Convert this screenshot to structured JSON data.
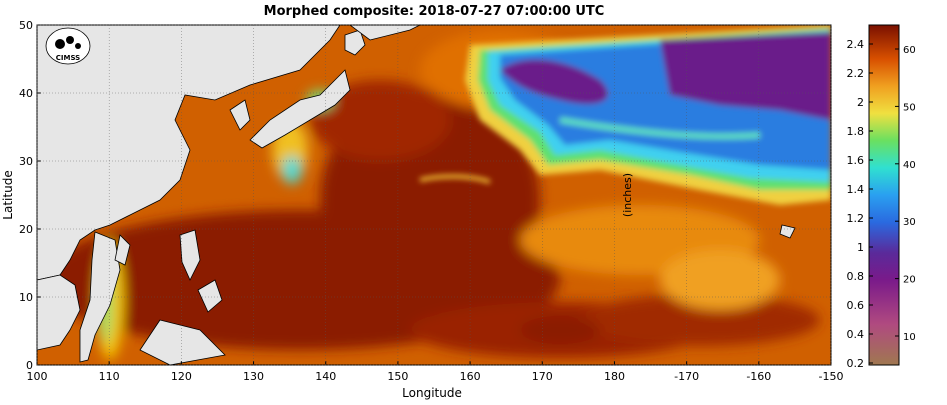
{
  "title": "Morphed composite: 2018-07-27 07:00:00 UTC",
  "logo_text": "CIMSS",
  "x_axis": {
    "label": "Longitude",
    "ticks": [
      "100",
      "110",
      "120",
      "130",
      "140",
      "150",
      "160",
      "170",
      "180",
      "-170",
      "-160",
      "-150"
    ]
  },
  "y_axis": {
    "label": "Latitude",
    "ticks": [
      "0",
      "10",
      "20",
      "30",
      "40",
      "50"
    ]
  },
  "colorbar": {
    "left_ticks": [
      "2.4",
      "2.2",
      "2",
      "1.8",
      "1.6",
      "1.4",
      "1.2",
      "1",
      "0.8",
      "0.6",
      "0.4",
      "0.2"
    ],
    "right_ticks": [
      "60",
      "50",
      "40",
      "30",
      "20",
      "10"
    ],
    "unit_label": "(inches)"
  },
  "colors": {
    "ocean_moist": "#8b1a00",
    "ocean_orange": "#e07000",
    "ocean_yellow": "#f4c400",
    "ocean_green": "#5fdc6a",
    "ocean_cyan": "#3fd8f0",
    "ocean_blue": "#2a7de0",
    "ocean_purple": "#6a1a8a",
    "land": "#e6e6e6"
  }
}
